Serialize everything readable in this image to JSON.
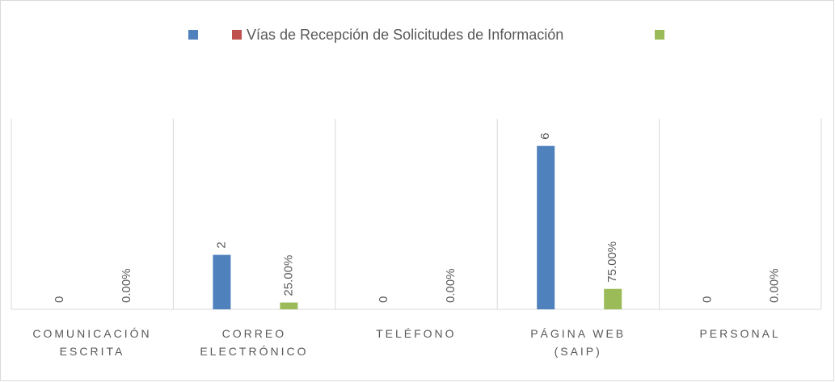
{
  "chart_data": {
    "type": "bar",
    "legend_title": "Vías de Recepción de Solicitudes de Información",
    "categories": [
      "COMUNICACIÓN ESCRITA",
      "CORREO ELECTRÓNICO",
      "TELÉFONO",
      "PÁGINA WEB (SAIP)",
      "PERSONAL"
    ],
    "series": [
      {
        "color": "#4f81bd",
        "values": [
          0,
          2,
          0,
          6,
          0
        ]
      },
      {
        "name": "Vías de Recepción de Solicitudes de Información",
        "color": "#c0504d",
        "values": [
          null,
          null,
          null,
          null,
          null
        ]
      },
      {
        "color": "#9bbb59",
        "values": [
          0,
          0.25,
          0,
          0.75,
          0
        ],
        "value_labels": [
          "0.00%",
          "25.00%",
          "0.00%",
          "75.00%",
          "0.00%"
        ]
      }
    ],
    "ylim": [
      0,
      7
    ]
  }
}
